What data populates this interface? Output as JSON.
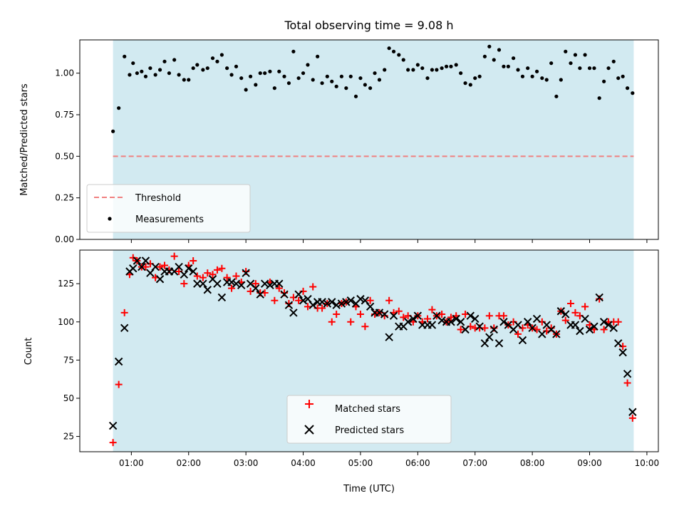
{
  "chart_data": {
    "type": "scatter",
    "title": "Total observing time = 9.08 h",
    "xlabel": "Time (UTC)",
    "x_ticks": [
      "01:00",
      "02:00",
      "03:00",
      "04:00",
      "05:00",
      "06:00",
      "07:00",
      "08:00",
      "09:00",
      "10:00"
    ],
    "x_unit": "hours UTC",
    "x_range": [
      0.1,
      10.2
    ],
    "observing_window": [
      0.68,
      9.77
    ],
    "shade_color": "#add8e6",
    "panels": [
      {
        "name": "ratio",
        "ylabel": "Matched/Predicted stars",
        "ylim": [
          0.0,
          1.2
        ],
        "y_ticks": [
          0.0,
          0.25,
          0.5,
          0.75,
          1.0
        ],
        "y_tick_labels": [
          "0.00",
          "0.25",
          "0.50",
          "0.75",
          "1.00"
        ],
        "threshold": {
          "label": "Threshold",
          "value": 0.5,
          "color": "#f08080"
        },
        "series": [
          {
            "name": "Measurements",
            "marker": "dot",
            "color": "#000000",
            "x": [
              0.68,
              0.78,
              0.88,
              0.97,
              1.03,
              1.1,
              1.18,
              1.25,
              1.33,
              1.42,
              1.5,
              1.58,
              1.66,
              1.75,
              1.83,
              1.92,
              2.0,
              2.08,
              2.15,
              2.25,
              2.33,
              2.42,
              2.5,
              2.58,
              2.67,
              2.75,
              2.83,
              2.92,
              3.0,
              3.08,
              3.17,
              3.25,
              3.33,
              3.42,
              3.5,
              3.58,
              3.67,
              3.75,
              3.83,
              3.92,
              4.0,
              4.08,
              4.17,
              4.25,
              4.33,
              4.42,
              4.5,
              4.58,
              4.67,
              4.75,
              4.83,
              4.92,
              5.0,
              5.08,
              5.17,
              5.25,
              5.33,
              5.42,
              5.5,
              5.58,
              5.67,
              5.75,
              5.83,
              5.92,
              6.0,
              6.08,
              6.17,
              6.25,
              6.33,
              6.42,
              6.5,
              6.58,
              6.67,
              6.75,
              6.83,
              6.92,
              7.0,
              7.08,
              7.17,
              7.25,
              7.33,
              7.42,
              7.5,
              7.58,
              7.67,
              7.75,
              7.83,
              7.92,
              8.0,
              8.08,
              8.17,
              8.25,
              8.33,
              8.42,
              8.5,
              8.58,
              8.67,
              8.75,
              8.83,
              8.92,
              9.0,
              9.08,
              9.17,
              9.25,
              9.33,
              9.42,
              9.5,
              9.58,
              9.66,
              9.75
            ],
            "y": [
              0.65,
              0.79,
              1.1,
              0.99,
              1.06,
              1.0,
              1.01,
              0.98,
              1.03,
              0.99,
              1.02,
              1.07,
              1.0,
              1.08,
              0.99,
              0.96,
              0.96,
              1.03,
              1.05,
              1.02,
              1.03,
              1.09,
              1.07,
              1.11,
              1.03,
              0.99,
              1.04,
              0.97,
              0.9,
              0.98,
              0.93,
              1.0,
              1.0,
              1.01,
              0.91,
              1.01,
              0.98,
              0.94,
              1.13,
              0.97,
              1.0,
              1.05,
              0.96,
              1.1,
              0.94,
              0.98,
              0.95,
              0.92,
              0.98,
              0.91,
              0.98,
              0.86,
              0.97,
              0.93,
              0.91,
              1.0,
              0.96,
              1.02,
              1.15,
              1.13,
              1.11,
              1.08,
              1.02,
              1.02,
              1.05,
              1.03,
              0.97,
              1.02,
              1.02,
              1.03,
              1.04,
              1.04,
              1.05,
              1.0,
              0.94,
              0.93,
              0.97,
              0.98,
              1.1,
              1.16,
              1.08,
              1.14,
              1.04,
              1.04,
              1.09,
              1.02,
              0.98,
              1.03,
              0.98,
              1.01,
              0.97,
              0.96,
              1.06,
              0.86,
              0.96,
              1.13,
              1.06,
              1.11,
              1.03,
              1.11,
              1.03,
              1.03,
              0.85,
              0.95,
              1.03,
              1.07,
              0.97,
              0.98,
              0.91,
              0.88
            ]
          }
        ],
        "legend": [
          "Threshold",
          "Measurements"
        ],
        "legend_position": "lower-left"
      },
      {
        "name": "counts",
        "ylabel": "Count",
        "ylim": [
          15,
          147
        ],
        "y_ticks": [
          25,
          50,
          75,
          100,
          125
        ],
        "y_tick_labels": [
          "25",
          "50",
          "75",
          "100",
          "125"
        ],
        "series": [
          {
            "name": "Matched stars",
            "marker": "plus",
            "color": "#ff0000",
            "x": [
              0.68,
              0.78,
              0.88,
              0.97,
              1.03,
              1.1,
              1.18,
              1.25,
              1.33,
              1.42,
              1.5,
              1.58,
              1.66,
              1.75,
              1.83,
              1.92,
              2.0,
              2.08,
              2.15,
              2.25,
              2.33,
              2.42,
              2.5,
              2.58,
              2.67,
              2.75,
              2.83,
              2.92,
              3.0,
              3.08,
              3.17,
              3.25,
              3.33,
              3.42,
              3.5,
              3.58,
              3.67,
              3.75,
              3.83,
              3.92,
              4.0,
              4.08,
              4.17,
              4.25,
              4.33,
              4.42,
              4.5,
              4.58,
              4.67,
              4.75,
              4.83,
              4.92,
              5.0,
              5.08,
              5.17,
              5.25,
              5.33,
              5.42,
              5.5,
              5.58,
              5.67,
              5.75,
              5.83,
              5.92,
              6.0,
              6.08,
              6.17,
              6.25,
              6.33,
              6.42,
              6.5,
              6.58,
              6.67,
              6.75,
              6.83,
              6.92,
              7.0,
              7.08,
              7.17,
              7.25,
              7.33,
              7.42,
              7.5,
              7.58,
              7.67,
              7.75,
              7.83,
              7.92,
              8.0,
              8.08,
              8.17,
              8.25,
              8.33,
              8.42,
              8.5,
              8.58,
              8.67,
              8.75,
              8.83,
              8.92,
              9.0,
              9.08,
              9.17,
              9.25,
              9.33,
              9.42,
              9.5,
              9.58,
              9.66,
              9.75
            ],
            "y": [
              21,
              59,
              106,
              131,
              142,
              140,
              136,
              136,
              138,
              129,
              136,
              137,
              134,
              143,
              133,
              125,
              137,
              140,
              130,
              129,
              132,
              131,
              134,
              135,
              129,
              122,
              130,
              126,
              133,
              120,
              125,
              119,
              119,
              126,
              114,
              122,
              119,
              112,
              116,
              114,
              120,
              110,
              123,
              109,
              109,
              112,
              100,
              105,
              112,
              113,
              100,
              110,
              105,
              97,
              114,
              105,
              106,
              104,
              114,
              106,
              107,
              103,
              104,
              100,
              104,
              100,
              102,
              108,
              104,
              105,
              100,
              103,
              104,
              95,
              105,
              97,
              96,
              96,
              96,
              104,
              96,
              104,
              104,
              98,
              100,
              92,
              96,
              98,
              96,
              95,
              100,
              94,
              96,
              92,
              107,
              101,
              112,
              106,
              104,
              110,
              98,
              95,
              115,
              95,
              100,
              100,
              100,
              84,
              60,
              37
            ]
          },
          {
            "name": "Predicted stars",
            "marker": "x",
            "color": "#000000",
            "x": [
              0.68,
              0.78,
              0.88,
              0.97,
              1.03,
              1.1,
              1.18,
              1.25,
              1.33,
              1.42,
              1.5,
              1.58,
              1.66,
              1.75,
              1.83,
              1.92,
              2.0,
              2.08,
              2.15,
              2.25,
              2.33,
              2.42,
              2.5,
              2.58,
              2.67,
              2.75,
              2.83,
              2.92,
              3.0,
              3.08,
              3.17,
              3.25,
              3.33,
              3.42,
              3.5,
              3.58,
              3.67,
              3.75,
              3.83,
              3.92,
              4.0,
              4.08,
              4.17,
              4.25,
              4.33,
              4.42,
              4.5,
              4.58,
              4.67,
              4.75,
              4.83,
              4.92,
              5.0,
              5.08,
              5.17,
              5.25,
              5.33,
              5.42,
              5.5,
              5.58,
              5.67,
              5.75,
              5.83,
              5.92,
              6.0,
              6.08,
              6.17,
              6.25,
              6.33,
              6.42,
              6.5,
              6.58,
              6.67,
              6.75,
              6.83,
              6.92,
              7.0,
              7.08,
              7.17,
              7.25,
              7.33,
              7.42,
              7.5,
              7.58,
              7.67,
              7.75,
              7.83,
              7.92,
              8.0,
              8.08,
              8.17,
              8.25,
              8.33,
              8.42,
              8.5,
              8.58,
              8.67,
              8.75,
              8.83,
              8.92,
              9.0,
              9.08,
              9.17,
              9.25,
              9.33,
              9.42,
              9.5,
              9.58,
              9.66,
              9.75
            ],
            "y": [
              32,
              74,
              96,
              133,
              135,
              140,
              136,
              140,
              132,
              136,
              128,
              133,
              133,
              133,
              136,
              131,
              135,
              133,
              125,
              125,
              121,
              128,
              125,
              116,
              126,
              126,
              125,
              124,
              132,
              125,
              122,
              118,
              125,
              124,
              125,
              125,
              118,
              111,
              106,
              118,
              114,
              115,
              111,
              113,
              113,
              112,
              113,
              111,
              112,
              113,
              114,
              112,
              115,
              114,
              110,
              106,
              106,
              105,
              90,
              104,
              97,
              97,
              100,
              102,
              104,
              98,
              98,
              98,
              104,
              101,
              100,
              100,
              102,
              100,
              95,
              104,
              102,
              97,
              86,
              90,
              95,
              86,
              100,
              98,
              95,
              98,
              88,
              100,
              96,
              102,
              92,
              98,
              95,
              92,
              107,
              105,
              98,
              98,
              94,
              102,
              95,
              97,
              116,
              100,
              98,
              96,
              86,
              80,
              66,
              41
            ]
          }
        ],
        "legend": [
          "Matched stars",
          "Predicted stars"
        ],
        "legend_position": "lower-center"
      }
    ]
  }
}
